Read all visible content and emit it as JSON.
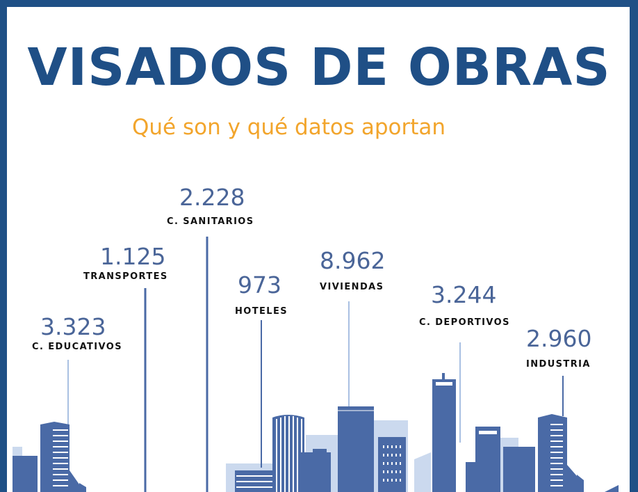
{
  "title": "VISADOS DE OBRAS",
  "subtitle": "Qué son y qué datos aportan",
  "stats": [
    {
      "value": "3.323",
      "label": "C. EDUCATIVOS"
    },
    {
      "value": "1.125",
      "label": "TRANSPORTES"
    },
    {
      "value": "2.228",
      "label": "C. SANITARIOS"
    },
    {
      "value": "973",
      "label": "HOTELES"
    },
    {
      "value": "8.962",
      "label": "VIVIENDAS"
    },
    {
      "value": "3.244",
      "label": "C. DEPORTIVOS"
    },
    {
      "value": "2.960",
      "label": "INDUSTRIA"
    }
  ],
  "colors": {
    "frame": "#1f5086",
    "title": "#1f4f86",
    "subtitle": "#f2a52c",
    "number": "#4a6598",
    "building_dark": "#4a6aa6",
    "building_light": "#cbd9ee"
  }
}
